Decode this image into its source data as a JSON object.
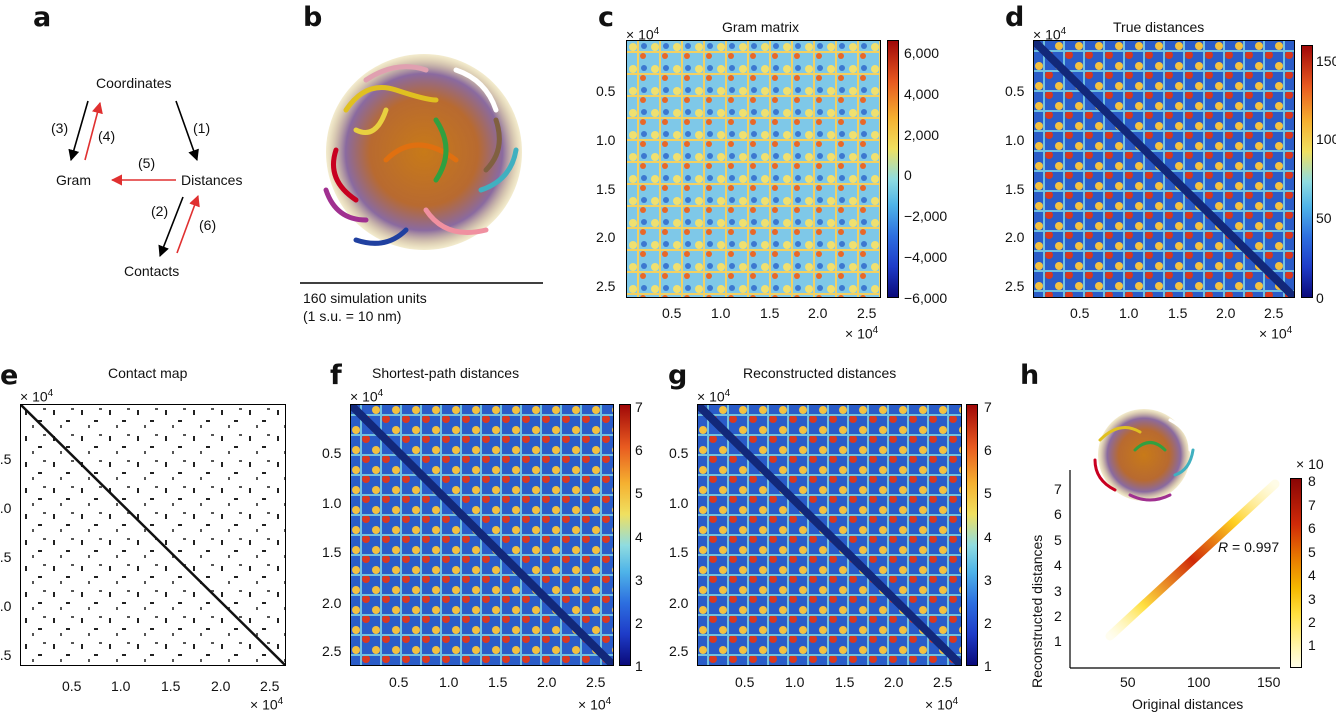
{
  "panels": {
    "a": "a",
    "b": "b",
    "c": "c",
    "d": "d",
    "e": "e",
    "f": "f",
    "g": "g",
    "h": "h"
  },
  "diagram": {
    "nodes": {
      "coordinates": "Coordinates",
      "gram": "Gram",
      "distances": "Distances",
      "contacts": "Contacts"
    },
    "edges": [
      "(1)",
      "(2)",
      "(3)",
      "(4)",
      "(5)",
      "(6)"
    ],
    "colors": {
      "forward": "#000000",
      "inverse": "#e03030"
    }
  },
  "panel_b": {
    "scale_label_1": "160 simulation units",
    "scale_label_2": "(1 s.u. = 10 nm)"
  },
  "axis_multiplier": "× 10",
  "axis_exponent": "4",
  "matrix_ticks": [
    "0.5",
    "1.0",
    "1.5",
    "2.0",
    "2.5"
  ],
  "panel_c": {
    "title": "Gram matrix",
    "colorbar_ticks": [
      "6,000",
      "4,000",
      "2,000",
      "0",
      "−2,000",
      "−4,000",
      "−6,000"
    ]
  },
  "panel_d": {
    "title": "True distances",
    "colorbar_ticks": [
      "150",
      "100",
      "50",
      "0"
    ]
  },
  "panel_e": {
    "title": "Contact map"
  },
  "panel_f": {
    "title": "Shortest-path distances",
    "colorbar_ticks": [
      "7",
      "6",
      "5",
      "4",
      "3",
      "2",
      "1"
    ]
  },
  "panel_g": {
    "title": "Reconstructed distances",
    "colorbar_ticks": [
      "7",
      "6",
      "5",
      "4",
      "3",
      "2",
      "1"
    ]
  },
  "panel_h": {
    "xlabel": "Original distances",
    "ylabel": "Reconstructed distances",
    "xticks": [
      "50",
      "100",
      "150"
    ],
    "yticks": [
      "1",
      "2",
      "3",
      "4",
      "5",
      "6",
      "7"
    ],
    "annotation": "R = 0.997",
    "colorbar_ticks": [
      "8",
      "7",
      "6",
      "5",
      "4",
      "3",
      "2",
      "1"
    ],
    "colorbar_multiplier": "× 10",
    "chart_data": {
      "type": "heatmap",
      "xlabel": "Original distances",
      "ylabel": "Reconstructed distances",
      "xlim": [
        0,
        160
      ],
      "ylim": [
        0,
        7.5
      ],
      "annotation": "R = 0.997"
    }
  }
}
